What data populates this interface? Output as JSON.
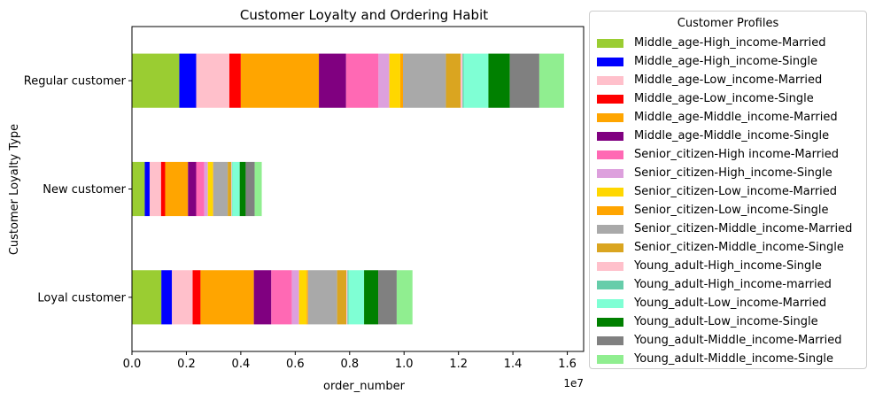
{
  "chart_data": {
    "type": "bar",
    "orientation": "horizontal",
    "stacked": true,
    "title": "Customer Loyalty and Ordering Habit",
    "xlabel": "order_number",
    "ylabel": "Customer Loyalty Type",
    "x_tick_labels": [
      "0.0",
      "0.2",
      "0.4",
      "0.6",
      "0.8",
      "1.0",
      "1.2",
      "1.4",
      "1.6"
    ],
    "x_offset_label": "1e7",
    "xlim": [
      0,
      16600000
    ],
    "grid": false,
    "legend_placement": "outside right",
    "legend_title": "Customer Profiles",
    "categories": [
      "Loyal customer",
      "New customer",
      "Regular customer"
    ],
    "series": [
      {
        "name": "Middle_age-High_income-Married",
        "color": "#9acd32",
        "values": [
          1080000,
          470000,
          1740000
        ]
      },
      {
        "name": "Middle_age-High_income-Single",
        "color": "#0000ff",
        "values": [
          390000,
          180000,
          620000
        ]
      },
      {
        "name": "Middle_age-Low_income-Married",
        "color": "#ffc0cb",
        "values": [
          760000,
          420000,
          1220000
        ]
      },
      {
        "name": "Middle_age-Low_income-Single",
        "color": "#ff0000",
        "values": [
          290000,
          150000,
          420000
        ]
      },
      {
        "name": "Middle_age-Middle_income-Married",
        "color": "#ffa500",
        "values": [
          1960000,
          840000,
          2870000
        ]
      },
      {
        "name": "Middle_age-Middle_income-Single",
        "color": "#800080",
        "values": [
          640000,
          300000,
          1000000
        ]
      },
      {
        "name": "Senior_citizen-High income-Married",
        "color": "#ff69b4",
        "values": [
          760000,
          300000,
          1190000
        ]
      },
      {
        "name": "Senior_citizen-High_income-Single",
        "color": "#dda0dd",
        "values": [
          260000,
          130000,
          400000
        ]
      },
      {
        "name": "Senior_citizen-Low_income-Married",
        "color": "#ffd700",
        "values": [
          280000,
          180000,
          400000
        ]
      },
      {
        "name": "Senior_citizen-Low_income-Single",
        "color": "#ffa500",
        "values": [
          50000,
          20000,
          100000
        ]
      },
      {
        "name": "Senior_citizen-Middle_income-Married",
        "color": "#a9a9a9",
        "values": [
          1070000,
          530000,
          1580000
        ]
      },
      {
        "name": "Senior_citizen-Middle_income-Single",
        "color": "#daa520",
        "values": [
          340000,
          130000,
          540000
        ]
      },
      {
        "name": "Young_adult-High_income-Single",
        "color": "#ffc0cb",
        "values": [
          40000,
          20000,
          70000
        ]
      },
      {
        "name": "Young_adult-High_income-married",
        "color": "#66cdaa",
        "values": [
          40000,
          20000,
          40000
        ]
      },
      {
        "name": "Young_adult-Low_income-Married",
        "color": "#7fffd4",
        "values": [
          570000,
          270000,
          910000
        ]
      },
      {
        "name": "Young_adult-Low_income-Single",
        "color": "#008000",
        "values": [
          520000,
          220000,
          790000
        ]
      },
      {
        "name": "Young_adult-Middle_income-Married",
        "color": "#808080",
        "values": [
          680000,
          330000,
          1080000
        ]
      },
      {
        "name": "Young_adult-Middle_income-Single",
        "color": "#90ee90",
        "values": [
          580000,
          260000,
          910000
        ]
      }
    ]
  }
}
